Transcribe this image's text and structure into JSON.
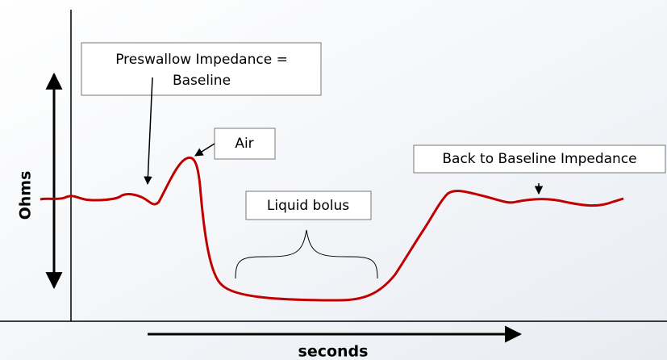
{
  "labels": {
    "baseline": [
      "Preswallow Impedance =",
      "Baseline"
    ],
    "air": "Air",
    "liquid": "Liquid bolus",
    "back": "Back to Baseline Impedance"
  },
  "axes": {
    "y": "Ohms",
    "x": "seconds"
  }
}
